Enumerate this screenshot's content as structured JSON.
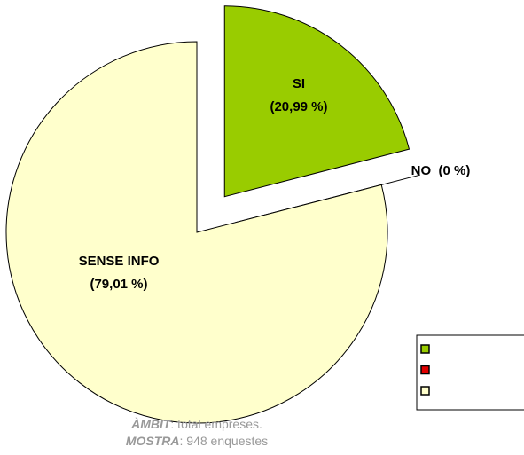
{
  "chart_data": {
    "type": "pie",
    "categories": [
      "SI",
      "NO",
      "SENSE INFO"
    ],
    "values": [
      20.99,
      0,
      79.01
    ],
    "value_labels": [
      "(20,99 %)",
      "(0 %)",
      "(79,01 %)"
    ],
    "colors": [
      "#99cc00",
      "#e00000",
      "#ffffcc"
    ],
    "notes": [
      {
        "label": "ÀMBIT",
        "text": ": total empreses."
      },
      {
        "label": "MOSTRA",
        "text": ": 948 enquestes"
      }
    ]
  }
}
